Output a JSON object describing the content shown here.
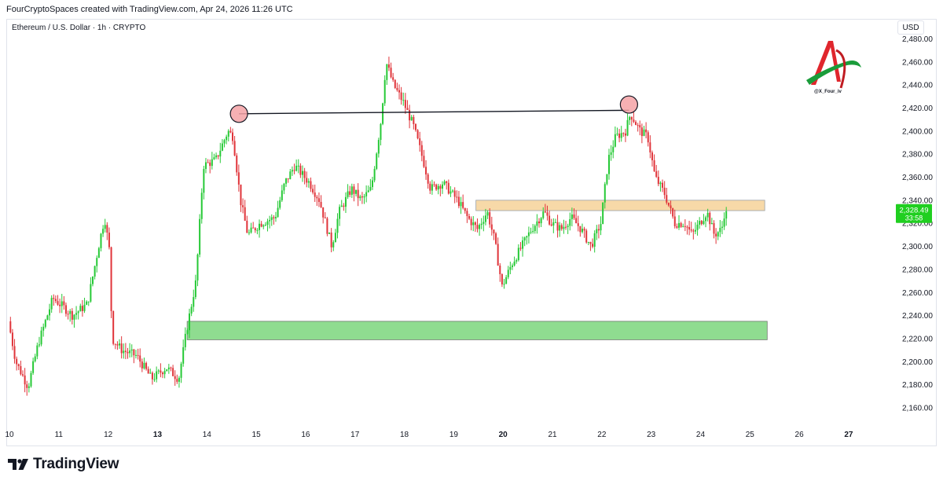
{
  "header": {
    "attribution": "FourCryptoSpaces created with TradingView.com, Apr 24, 2026 11:26 UTC"
  },
  "symbol_line": "Ethereum / U.S. Dollar · 1h · CRYPTO",
  "currency": "USD",
  "watermark": "@X_Four_iv",
  "footer": {
    "brand": "TradingView",
    "icon": "tradingview-logo-icon"
  },
  "colors": {
    "up": "#26c936",
    "down": "#e0343a",
    "resistance_zone": "#f7d9a8",
    "support_zone": "#8fdc90",
    "last_price_badge": "#20cf20",
    "marker": "#f4a2a6"
  },
  "chart_data": {
    "type": "candlestick",
    "title": "Ethereum / U.S. Dollar · 1h · CRYPTO",
    "ylim": [
      2150,
      2480
    ],
    "y_ticks": [
      2160,
      2180,
      2200,
      2220,
      2240,
      2260,
      2280,
      2300,
      2320,
      2340,
      2360,
      2380,
      2400,
      2420,
      2440,
      2460,
      2480
    ],
    "y_tick_labels": [
      "2,160.00",
      "2,180.00",
      "2,200.00",
      "2,220.00",
      "2,240.00",
      "2,260.00",
      "2,280.00",
      "2,300.00",
      "2,320.00",
      "2,340.00",
      "2,360.00",
      "2,380.00",
      "2,400.00",
      "2,420.00",
      "2,440.00",
      "2,460.00",
      "2,480.00"
    ],
    "xlim_days": [
      10,
      27.4
    ],
    "x_ticks": [
      {
        "day": 10,
        "label": "10",
        "bold": false
      },
      {
        "day": 11,
        "label": "11",
        "bold": false
      },
      {
        "day": 12,
        "label": "12",
        "bold": false
      },
      {
        "day": 13,
        "label": "13",
        "bold": true
      },
      {
        "day": 14,
        "label": "14",
        "bold": false
      },
      {
        "day": 15,
        "label": "15",
        "bold": false
      },
      {
        "day": 16,
        "label": "16",
        "bold": false
      },
      {
        "day": 17,
        "label": "17",
        "bold": false
      },
      {
        "day": 18,
        "label": "18",
        "bold": false
      },
      {
        "day": 19,
        "label": "19",
        "bold": false
      },
      {
        "day": 20,
        "label": "20",
        "bold": true
      },
      {
        "day": 21,
        "label": "21",
        "bold": false
      },
      {
        "day": 22,
        "label": "22",
        "bold": false
      },
      {
        "day": 23,
        "label": "23",
        "bold": false
      },
      {
        "day": 24,
        "label": "24",
        "bold": false
      },
      {
        "day": 25,
        "label": "25",
        "bold": false
      },
      {
        "day": 26,
        "label": "26",
        "bold": false
      },
      {
        "day": 27,
        "label": "27",
        "bold": true
      }
    ],
    "price_path": [
      [
        10.0,
        2235
      ],
      [
        10.15,
        2200
      ],
      [
        10.4,
        2178
      ],
      [
        10.6,
        2215
      ],
      [
        10.9,
        2255
      ],
      [
        11.1,
        2248
      ],
      [
        11.3,
        2240
      ],
      [
        11.6,
        2250
      ],
      [
        11.85,
        2305
      ],
      [
        11.95,
        2325
      ],
      [
        12.05,
        2295
      ],
      [
        12.1,
        2220
      ],
      [
        12.3,
        2210
      ],
      [
        12.6,
        2205
      ],
      [
        12.9,
        2185
      ],
      [
        13.2,
        2195
      ],
      [
        13.45,
        2185
      ],
      [
        13.6,
        2225
      ],
      [
        13.8,
        2270
      ],
      [
        13.95,
        2370
      ],
      [
        14.2,
        2375
      ],
      [
        14.45,
        2400
      ],
      [
        14.55,
        2395
      ],
      [
        14.7,
        2340
      ],
      [
        14.85,
        2310
      ],
      [
        15.1,
        2320
      ],
      [
        15.4,
        2325
      ],
      [
        15.6,
        2355
      ],
      [
        15.8,
        2370
      ],
      [
        16.1,
        2355
      ],
      [
        16.3,
        2340
      ],
      [
        16.55,
        2300
      ],
      [
        16.7,
        2330
      ],
      [
        16.95,
        2350
      ],
      [
        17.15,
        2340
      ],
      [
        17.35,
        2350
      ],
      [
        17.55,
        2410
      ],
      [
        17.65,
        2460
      ],
      [
        17.8,
        2440
      ],
      [
        18.0,
        2425
      ],
      [
        18.2,
        2405
      ],
      [
        18.4,
        2375
      ],
      [
        18.55,
        2350
      ],
      [
        18.8,
        2355
      ],
      [
        19.1,
        2340
      ],
      [
        19.3,
        2325
      ],
      [
        19.5,
        2315
      ],
      [
        19.7,
        2330
      ],
      [
        19.85,
        2305
      ],
      [
        20.0,
        2265
      ],
      [
        20.2,
        2285
      ],
      [
        20.4,
        2300
      ],
      [
        20.6,
        2315
      ],
      [
        20.85,
        2330
      ],
      [
        21.0,
        2320
      ],
      [
        21.2,
        2315
      ],
      [
        21.4,
        2325
      ],
      [
        21.6,
        2315
      ],
      [
        21.8,
        2300
      ],
      [
        22.0,
        2320
      ],
      [
        22.15,
        2375
      ],
      [
        22.3,
        2395
      ],
      [
        22.5,
        2400
      ],
      [
        22.6,
        2415
      ],
      [
        22.8,
        2400
      ],
      [
        22.95,
        2395
      ],
      [
        23.1,
        2360
      ],
      [
        23.3,
        2345
      ],
      [
        23.5,
        2320
      ],
      [
        23.7,
        2320
      ],
      [
        23.85,
        2310
      ],
      [
        24.0,
        2320
      ],
      [
        24.15,
        2330
      ],
      [
        24.3,
        2310
      ],
      [
        24.45,
        2315
      ],
      [
        24.5,
        2328
      ]
    ],
    "last_price": 2328.49,
    "last_price_label": "2,328.49",
    "countdown_label": "33:58",
    "annotations": {
      "resistance_zone": {
        "x_start": 19.45,
        "x_end": 25.3,
        "y_low": 2331,
        "y_high": 2340
      },
      "support_zone": {
        "x_start": 13.6,
        "x_end": 25.35,
        "y_low": 2219,
        "y_high": 2235
      },
      "trend_line": {
        "x1": 14.65,
        "y1": 2415,
        "x2": 22.55,
        "y2": 2418
      },
      "circle_markers": [
        {
          "x": 14.65,
          "y": 2415
        },
        {
          "x": 22.55,
          "y": 2423
        }
      ]
    }
  }
}
